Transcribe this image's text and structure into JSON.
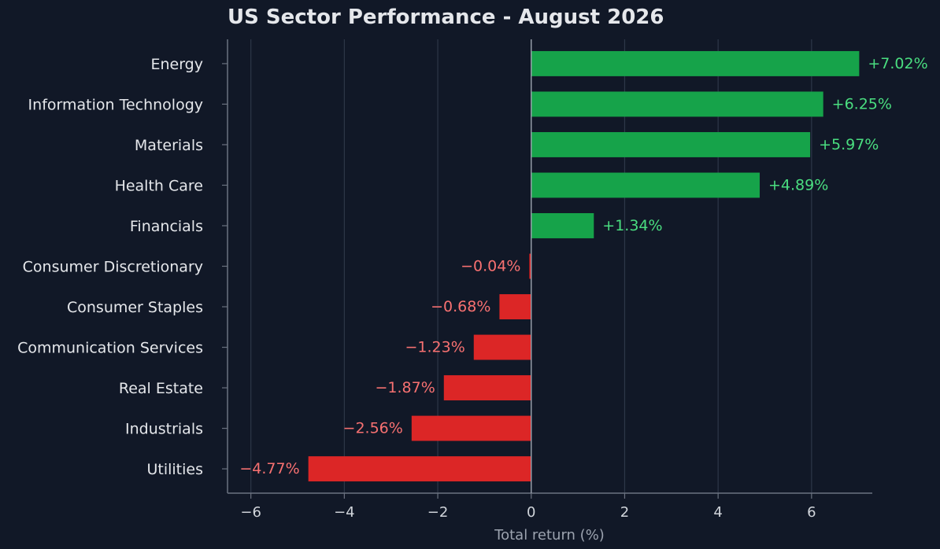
{
  "chart_data": {
    "type": "bar",
    "orientation": "horizontal",
    "title": "US Sector Performance - August 2026",
    "xlabel": "Total return (%)",
    "ylabel": "",
    "xlim": [
      -6.5,
      7.3
    ],
    "xticks": [
      -6,
      -4,
      -2,
      0,
      2,
      4,
      6
    ],
    "xtick_labels": [
      "−6",
      "−4",
      "−2",
      "0",
      "2",
      "4",
      "6"
    ],
    "grid": "vertical",
    "categories": [
      "Energy",
      "Information Technology",
      "Materials",
      "Health Care",
      "Financials",
      "Consumer Discretionary",
      "Consumer Staples",
      "Communication Services",
      "Real Estate",
      "Industrials",
      "Utilities"
    ],
    "values": [
      7.02,
      6.25,
      5.97,
      4.89,
      1.34,
      -0.04,
      -0.68,
      -1.23,
      -1.87,
      -2.56,
      -4.77
    ],
    "value_labels": [
      "+7.02%",
      "+6.25%",
      "+5.97%",
      "+4.89%",
      "+1.34%",
      "−0.04%",
      "−0.68%",
      "−1.23%",
      "−1.87%",
      "−2.56%",
      "−4.77%"
    ],
    "colors": {
      "positive": "#16a34a",
      "negative": "#dc2626",
      "positive_label": "#4ade80",
      "negative_label": "#f87171",
      "background": "#111827",
      "grid": "#2d3748",
      "axis": "#6b7280"
    }
  }
}
